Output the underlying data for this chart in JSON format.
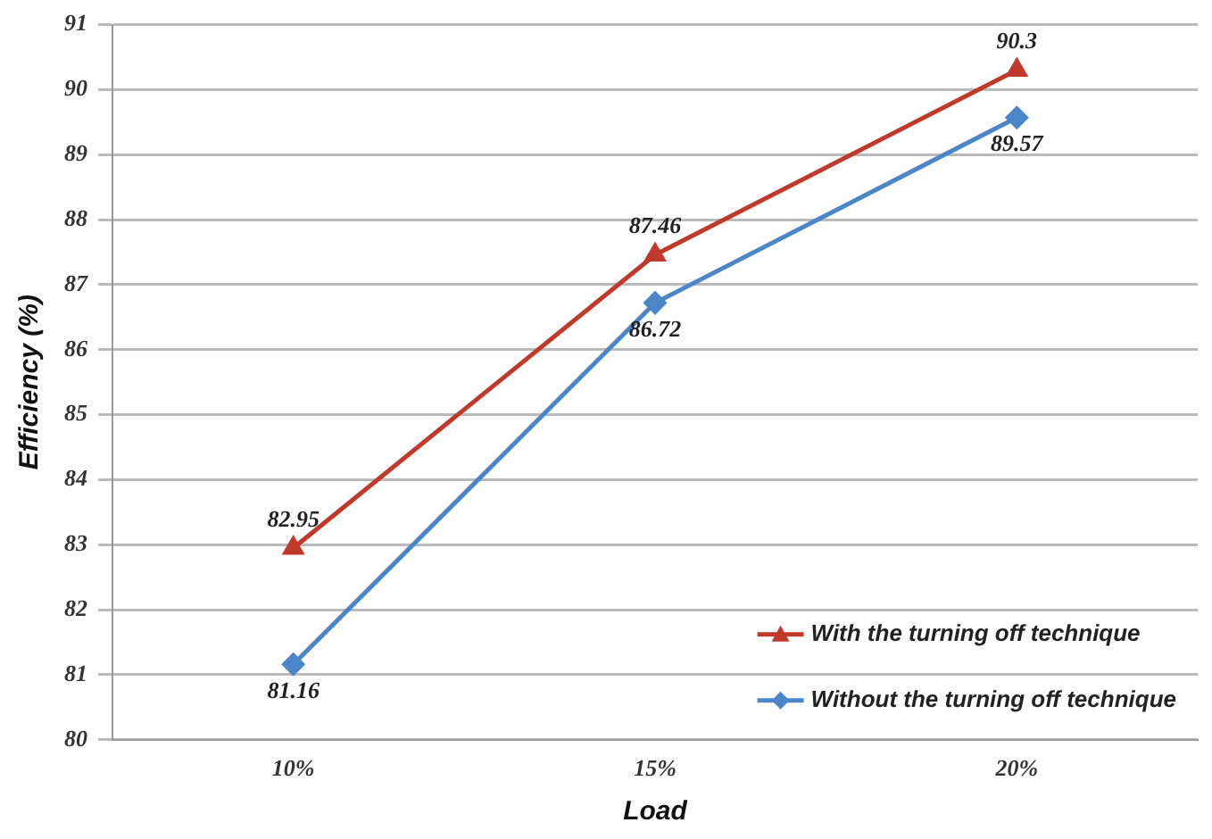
{
  "chart_data": {
    "type": "line",
    "xlabel": "Load",
    "ylabel": "Efficiency (%)",
    "categories": [
      "10%",
      "15%",
      "20%"
    ],
    "series": [
      {
        "name": "With the turning off technique",
        "color": "#c0392b",
        "marker": "triangle",
        "values": [
          82.95,
          87.46,
          90.3
        ]
      },
      {
        "name": "Without the turning off technique",
        "color": "#4a86c8",
        "marker": "diamond",
        "values": [
          81.16,
          86.72,
          89.57
        ]
      }
    ],
    "ylim": [
      80,
      91
    ],
    "yticks": [
      80,
      81,
      82,
      83,
      84,
      85,
      86,
      87,
      88,
      89,
      90,
      91
    ],
    "grid": "y",
    "legend": "bottom right",
    "data_labels": true
  }
}
